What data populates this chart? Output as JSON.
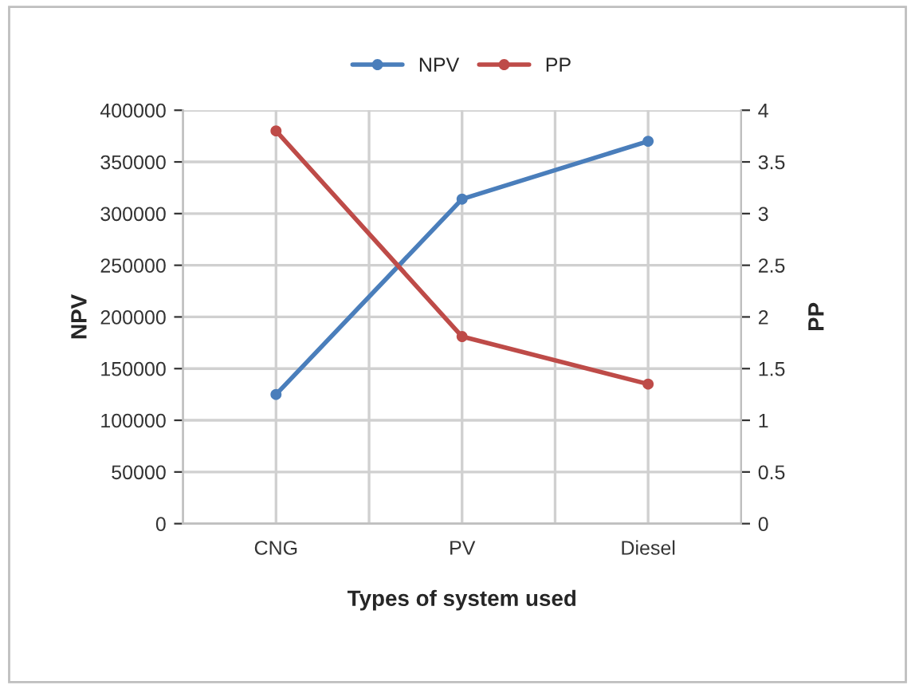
{
  "chart_data": {
    "type": "line",
    "xlabel": "Types of system used",
    "ylabel": "NPV",
    "y2label": "PP",
    "categories": [
      "CNG",
      "PV",
      "Diesel"
    ],
    "series": [
      {
        "name": "NPV",
        "color": "#4a7ebb",
        "values": [
          125000,
          314000,
          370000
        ]
      },
      {
        "name": "PP",
        "color": "#be4b48",
        "values": [
          3.8,
          1.81,
          1.35
        ],
        "axis": "y2"
      }
    ],
    "ylim": [
      0,
      400000
    ],
    "yticks": [
      0,
      50000,
      100000,
      150000,
      200000,
      250000,
      300000,
      350000,
      400000
    ],
    "y2lim": [
      0,
      4
    ],
    "y2ticks": [
      0,
      0.5,
      1,
      1.5,
      2,
      2.5,
      3,
      3.5,
      4
    ],
    "grid": true,
    "legend": "top",
    "marker": "circle",
    "line_style": "solid"
  }
}
